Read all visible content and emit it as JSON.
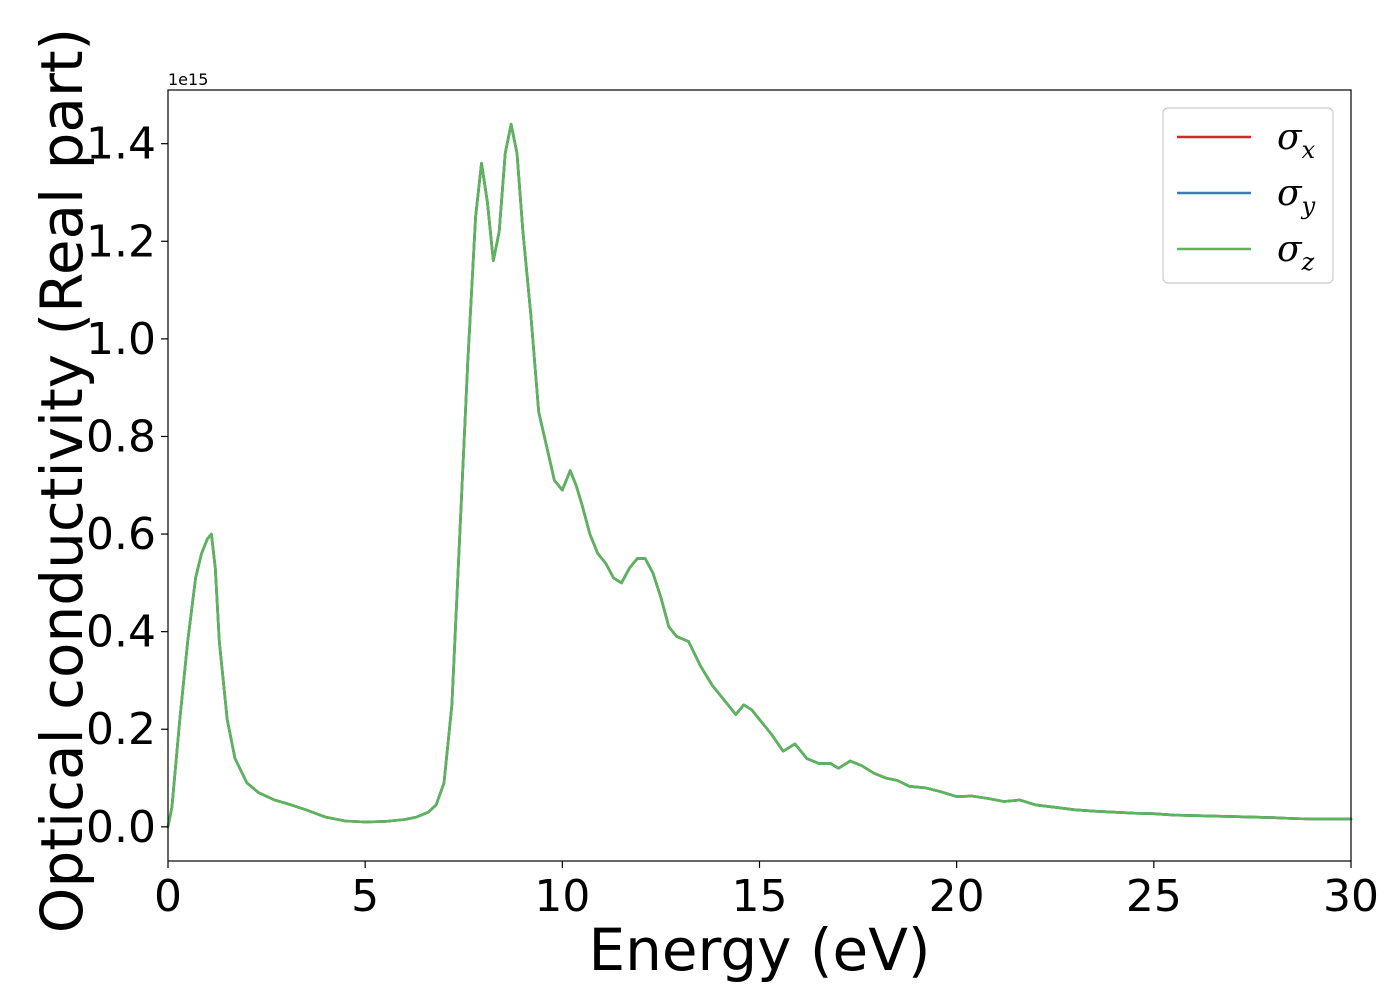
{
  "chart_data": {
    "type": "line",
    "xlabel": "Energy (eV)",
    "ylabel": "Optical conductivity (Real part)",
    "y_offset_text": "1e15",
    "y_scale_factor": 1000000000000000.0,
    "xlim": [
      0,
      30
    ],
    "ylim": [
      -0.07,
      1.51
    ],
    "x_ticks": [
      0,
      5,
      10,
      15,
      20,
      25,
      30
    ],
    "x_tick_labels": [
      "0",
      "5",
      "10",
      "15",
      "20",
      "25",
      "30"
    ],
    "y_ticks": [
      0.0,
      0.2,
      0.4,
      0.6,
      0.8,
      1.0,
      1.2,
      1.4
    ],
    "y_tick_labels": [
      "0.0",
      "0.2",
      "0.4",
      "0.6",
      "0.8",
      "1.0",
      "1.2",
      "1.4"
    ],
    "grid": false,
    "legend_position": "top-right",
    "colors": {
      "sigma_x": "#d62728",
      "sigma_y": "#3a7bb8",
      "sigma_z": "#5bb55b"
    },
    "x": [
      0,
      0.1,
      0.3,
      0.5,
      0.7,
      0.85,
      1.0,
      1.1,
      1.2,
      1.3,
      1.5,
      1.7,
      2.0,
      2.3,
      2.7,
      3.0,
      3.5,
      4.0,
      4.5,
      5.0,
      5.5,
      6.0,
      6.3,
      6.6,
      6.8,
      7.0,
      7.2,
      7.4,
      7.6,
      7.8,
      7.95,
      8.1,
      8.25,
      8.4,
      8.55,
      8.7,
      8.85,
      9.0,
      9.2,
      9.4,
      9.6,
      9.8,
      10.0,
      10.2,
      10.35,
      10.5,
      10.7,
      10.9,
      11.1,
      11.3,
      11.5,
      11.7,
      11.9,
      12.1,
      12.3,
      12.5,
      12.7,
      12.9,
      13.2,
      13.5,
      13.8,
      14.0,
      14.2,
      14.4,
      14.6,
      14.8,
      15.0,
      15.3,
      15.6,
      15.9,
      16.2,
      16.5,
      16.8,
      17.0,
      17.3,
      17.6,
      17.9,
      18.2,
      18.5,
      18.8,
      19.2,
      19.6,
      20.0,
      20.4,
      20.8,
      21.2,
      21.6,
      22.0,
      22.5,
      23.0,
      23.5,
      24.0,
      24.5,
      25.0,
      25.5,
      26.0,
      26.5,
      27.0,
      27.5,
      28.0,
      28.5,
      29.0,
      29.5,
      30.0
    ],
    "series": [
      {
        "name": "σx",
        "subscript": "x",
        "color": "#d62728",
        "values": [
          0.0,
          0.04,
          0.22,
          0.38,
          0.51,
          0.56,
          0.59,
          0.6,
          0.53,
          0.38,
          0.22,
          0.14,
          0.09,
          0.07,
          0.055,
          0.048,
          0.035,
          0.02,
          0.012,
          0.01,
          0.011,
          0.015,
          0.02,
          0.03,
          0.045,
          0.09,
          0.25,
          0.6,
          0.95,
          1.25,
          1.36,
          1.28,
          1.16,
          1.22,
          1.38,
          1.44,
          1.38,
          1.22,
          1.05,
          0.85,
          0.78,
          0.71,
          0.69,
          0.73,
          0.7,
          0.66,
          0.6,
          0.56,
          0.54,
          0.51,
          0.5,
          0.53,
          0.55,
          0.55,
          0.52,
          0.47,
          0.41,
          0.39,
          0.38,
          0.33,
          0.29,
          0.27,
          0.25,
          0.23,
          0.25,
          0.24,
          0.22,
          0.19,
          0.155,
          0.17,
          0.14,
          0.13,
          0.13,
          0.12,
          0.135,
          0.125,
          0.11,
          0.1,
          0.095,
          0.083,
          0.08,
          0.072,
          0.062,
          0.063,
          0.058,
          0.052,
          0.055,
          0.045,
          0.04,
          0.035,
          0.032,
          0.03,
          0.028,
          0.027,
          0.024,
          0.023,
          0.022,
          0.021,
          0.02,
          0.019,
          0.017,
          0.016,
          0.016,
          0.016
        ]
      },
      {
        "name": "σy",
        "subscript": "y",
        "color": "#3a7bb8",
        "values": [
          0.0,
          0.04,
          0.22,
          0.38,
          0.51,
          0.56,
          0.59,
          0.6,
          0.53,
          0.38,
          0.22,
          0.14,
          0.09,
          0.07,
          0.055,
          0.048,
          0.035,
          0.02,
          0.012,
          0.01,
          0.011,
          0.015,
          0.02,
          0.03,
          0.045,
          0.09,
          0.25,
          0.6,
          0.95,
          1.25,
          1.36,
          1.28,
          1.16,
          1.22,
          1.38,
          1.44,
          1.38,
          1.22,
          1.05,
          0.85,
          0.78,
          0.71,
          0.69,
          0.73,
          0.7,
          0.66,
          0.6,
          0.56,
          0.54,
          0.51,
          0.5,
          0.53,
          0.55,
          0.55,
          0.52,
          0.47,
          0.41,
          0.39,
          0.38,
          0.33,
          0.29,
          0.27,
          0.25,
          0.23,
          0.25,
          0.24,
          0.22,
          0.19,
          0.155,
          0.17,
          0.14,
          0.13,
          0.13,
          0.12,
          0.135,
          0.125,
          0.11,
          0.1,
          0.095,
          0.083,
          0.08,
          0.072,
          0.062,
          0.063,
          0.058,
          0.052,
          0.055,
          0.045,
          0.04,
          0.035,
          0.032,
          0.03,
          0.028,
          0.027,
          0.024,
          0.023,
          0.022,
          0.021,
          0.02,
          0.019,
          0.017,
          0.016,
          0.016,
          0.016
        ]
      },
      {
        "name": "σz",
        "subscript": "z",
        "color": "#5bb55b",
        "values": [
          0.0,
          0.04,
          0.22,
          0.38,
          0.51,
          0.56,
          0.59,
          0.6,
          0.53,
          0.38,
          0.22,
          0.14,
          0.09,
          0.07,
          0.055,
          0.048,
          0.035,
          0.02,
          0.012,
          0.01,
          0.011,
          0.015,
          0.02,
          0.03,
          0.045,
          0.09,
          0.25,
          0.6,
          0.95,
          1.25,
          1.36,
          1.28,
          1.16,
          1.22,
          1.38,
          1.44,
          1.38,
          1.22,
          1.05,
          0.85,
          0.78,
          0.71,
          0.69,
          0.73,
          0.7,
          0.66,
          0.6,
          0.56,
          0.54,
          0.51,
          0.5,
          0.53,
          0.55,
          0.55,
          0.52,
          0.47,
          0.41,
          0.39,
          0.38,
          0.33,
          0.29,
          0.27,
          0.25,
          0.23,
          0.25,
          0.24,
          0.22,
          0.19,
          0.155,
          0.17,
          0.14,
          0.13,
          0.13,
          0.12,
          0.135,
          0.125,
          0.11,
          0.1,
          0.095,
          0.083,
          0.08,
          0.072,
          0.062,
          0.063,
          0.058,
          0.052,
          0.055,
          0.045,
          0.04,
          0.035,
          0.032,
          0.03,
          0.028,
          0.027,
          0.024,
          0.023,
          0.022,
          0.021,
          0.02,
          0.019,
          0.017,
          0.016,
          0.016,
          0.016
        ]
      }
    ]
  }
}
